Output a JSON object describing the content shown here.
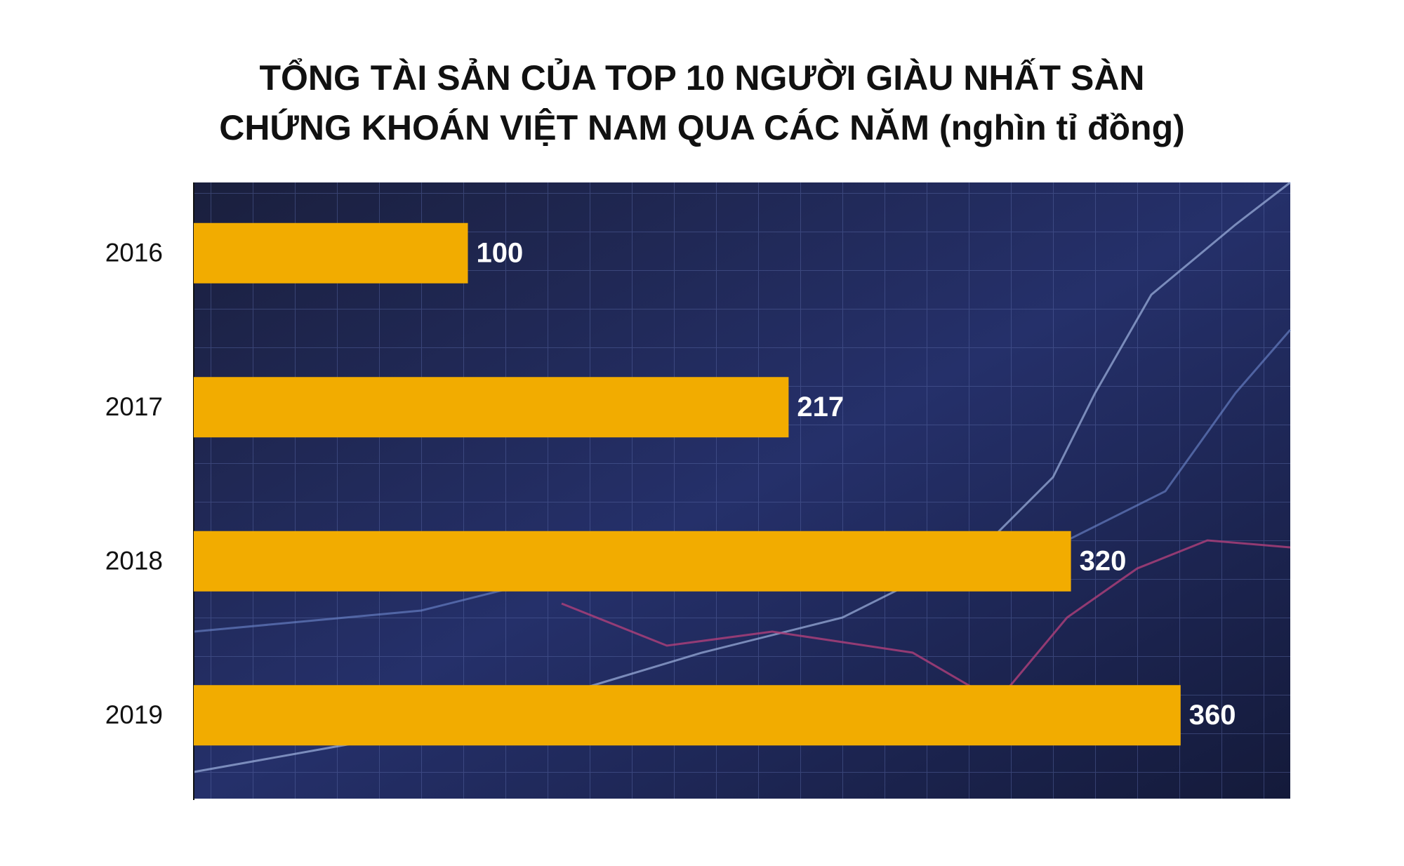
{
  "chart_data": {
    "type": "bar",
    "orientation": "horizontal",
    "title": [
      "TỔNG TÀI SẢN CỦA TOP 10 NGƯỜI GIÀU NHẤT SÀN",
      "CHỨNG KHOÁN VIỆT NAM QUA CÁC NĂM (nghìn tỉ đồng)"
    ],
    "categories": [
      "2016",
      "2017",
      "2018",
      "2019"
    ],
    "values": [
      100,
      217,
      320,
      360
    ],
    "color": "#f2ac00",
    "xlim": [
      0,
      400
    ]
  }
}
